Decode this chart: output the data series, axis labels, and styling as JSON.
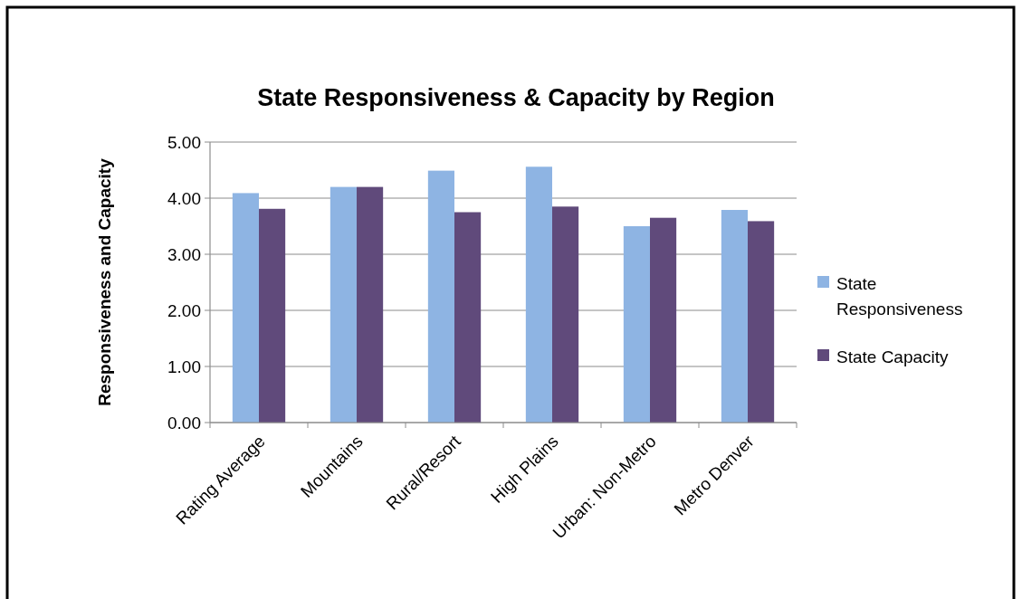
{
  "chart_data": {
    "type": "bar",
    "title": "State Responsiveness & Capacity by Region",
    "ylabel": "Responsiveness and Capacity",
    "categories": [
      "Rating Average",
      "Mountains",
      "Rural/Resort",
      "High Plains",
      "Urban: Non-Metro",
      "Metro Denver"
    ],
    "series": [
      {
        "name": "State Responsiveness",
        "color": "#8eb4e3",
        "values": [
          4.09,
          4.2,
          4.49,
          4.56,
          3.5,
          3.79
        ]
      },
      {
        "name": "State Capacity",
        "color": "#604a7b",
        "values": [
          3.81,
          4.2,
          3.75,
          3.85,
          3.65,
          3.59
        ]
      }
    ],
    "ylim": [
      0,
      5
    ],
    "yticks": [
      {
        "value": 0,
        "label": "0.00"
      },
      {
        "value": 1,
        "label": "1.00"
      },
      {
        "value": 2,
        "label": "2.00"
      },
      {
        "value": 3,
        "label": "3.00"
      },
      {
        "value": 4,
        "label": "4.00"
      },
      {
        "value": 5,
        "label": "5.00"
      }
    ],
    "grid": "y",
    "legend": "right"
  }
}
